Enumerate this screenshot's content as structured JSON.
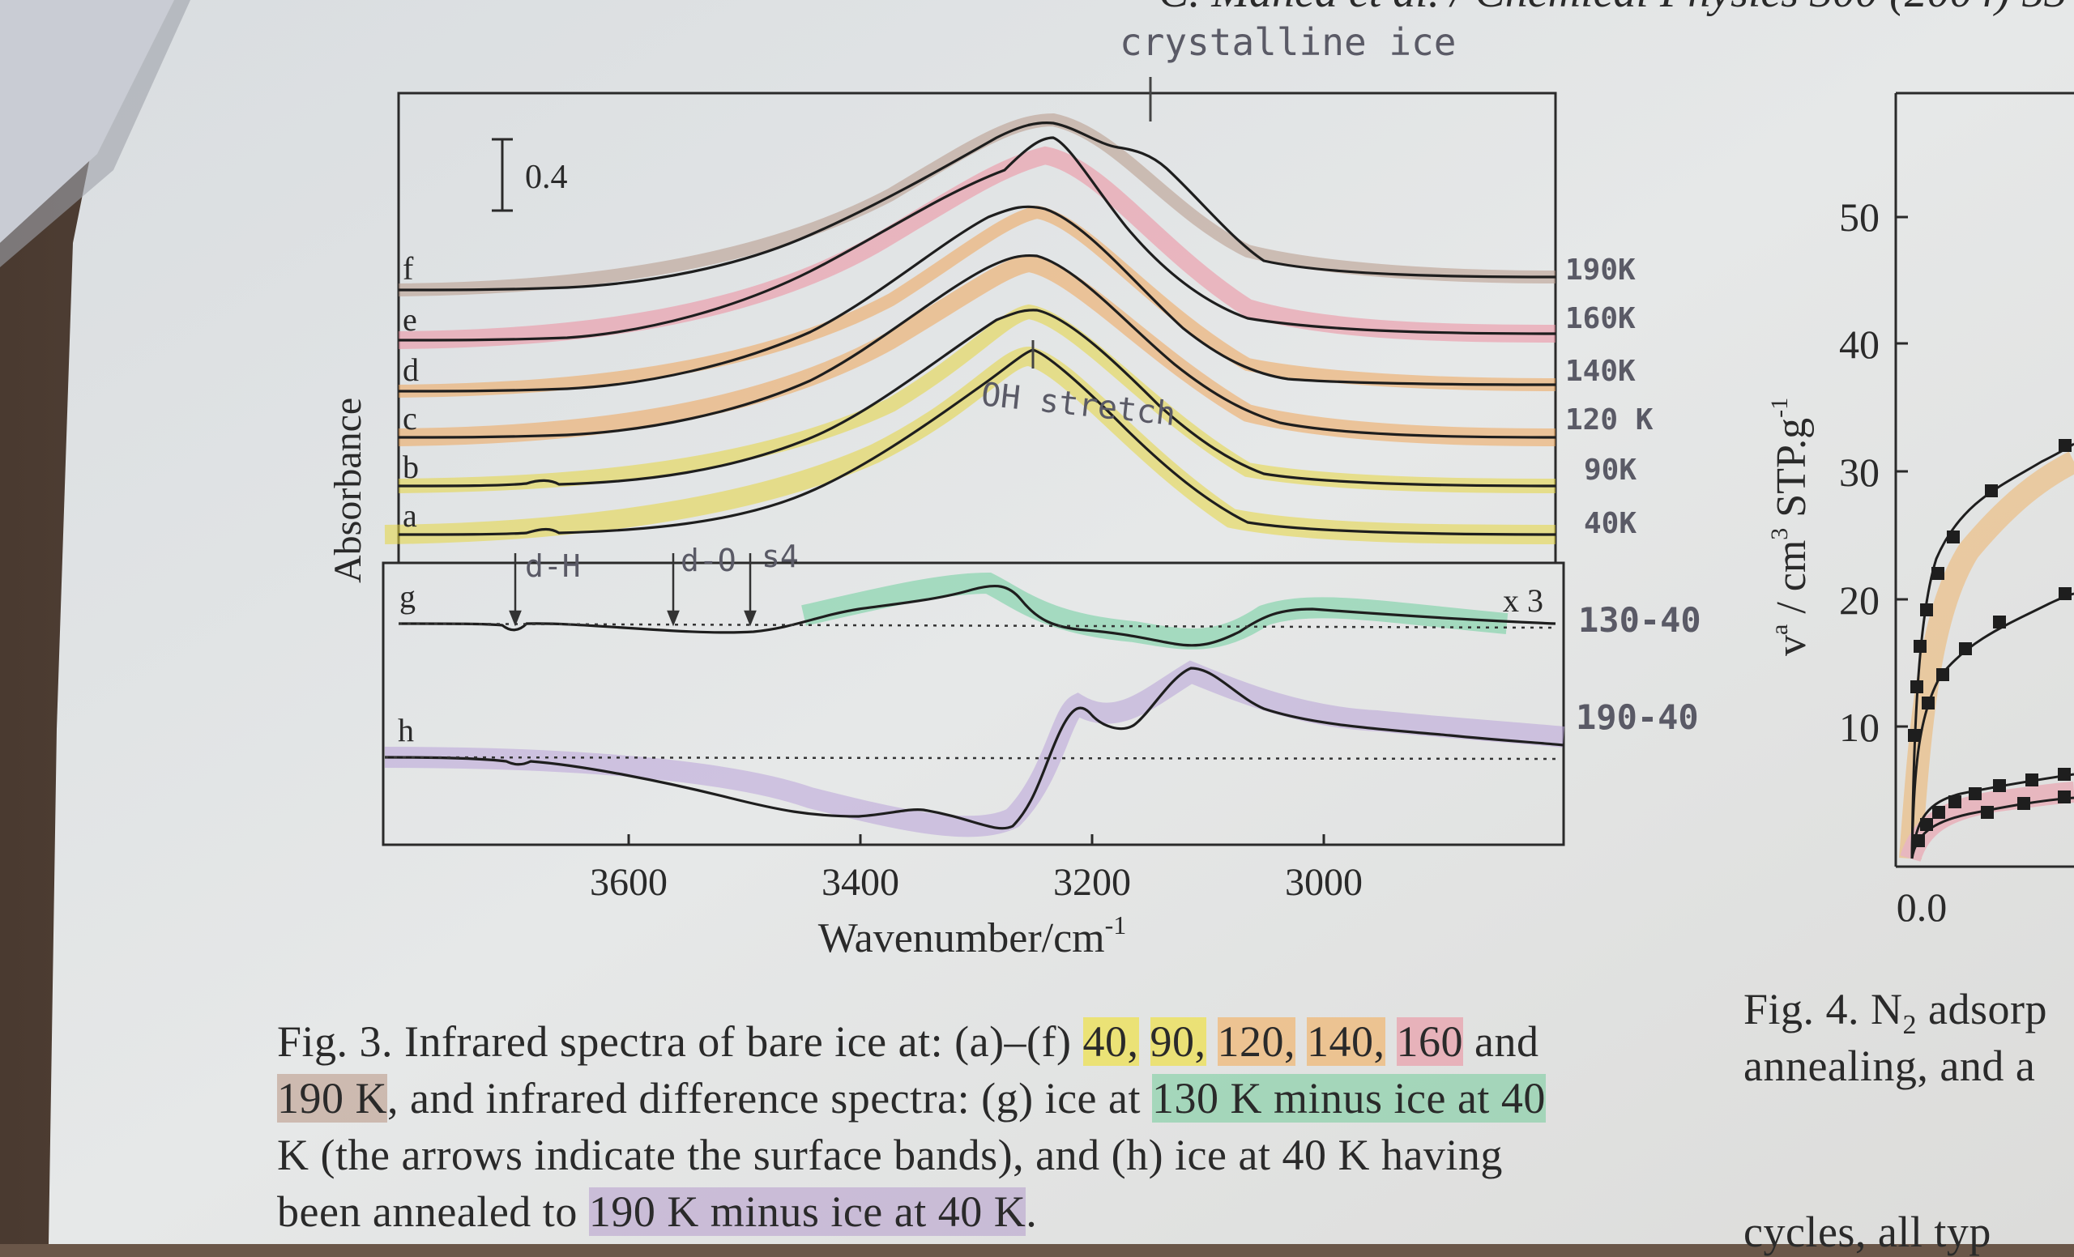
{
  "page_header": "C. Manca et al. / Chemical Physics 300 (2004) 53",
  "left_figure": {
    "chart_data": {
      "type": "line",
      "xlabel": "Wavenumber/cm",
      "xlabel_superscript": "-1",
      "ylabel": "Absorbance",
      "x_ticks": [
        3600,
        3400,
        3200,
        3000
      ],
      "x_range": [
        3810,
        2780
      ],
      "scale_bar_label": "0.4",
      "multiplier_label": "x 3",
      "series": [
        {
          "name": "a",
          "temperature_note": "40K",
          "highlight": "#e8dc44"
        },
        {
          "name": "b",
          "temperature_note": "90K",
          "highlight": "#e8dc44"
        },
        {
          "name": "c",
          "temperature_note": "120 K",
          "highlight": "#f0a65a"
        },
        {
          "name": "d",
          "temperature_note": "140K",
          "highlight": "#f0a65a"
        },
        {
          "name": "e",
          "temperature_note": "160K",
          "highlight": "#ee8fa0"
        },
        {
          "name": "f",
          "temperature_note": "190K",
          "highlight": "#b89a8a"
        },
        {
          "name": "g",
          "temperature_note": "130-40",
          "highlight": "#6fd0a0"
        },
        {
          "name": "h",
          "temperature_note": "190-40",
          "highlight": "#b9a3d8"
        }
      ],
      "arrows": [
        "d-H",
        "d-O",
        "s4"
      ],
      "handwritten": [
        "crystalline ice",
        "OH stretch"
      ]
    }
  },
  "right_figure": {
    "ylabel_main": "v",
    "ylabel_rest": " / cm",
    "ylabel_unit": " STP.g",
    "y_ticks": [
      "50",
      "40",
      "30",
      "20",
      "10"
    ],
    "x_tick": "0.0"
  },
  "caption_left": {
    "line1_pre": "Fig. 3. Infrared spectra of bare ice at: (a)–(f) ",
    "v40": "40,",
    "v90": "90,",
    "v120": "120,",
    "v140": "140,",
    "v160": "160",
    "line1_post": " and",
    "v190": "190 K",
    "line2_post": ", and infrared difference spectra: (g) ice at ",
    "v130": "130 K minus ice at ",
    "v40b": "40",
    "line3": "K (the arrows indicate the surface bands), and (h) ice at 40 K having",
    "line4_pre": "been annealed to ",
    "v190b": "190 K minus ice at 40 K",
    "line4_post": "."
  },
  "caption_right": {
    "line1": "Fig. 4. N",
    "line1_sub": "2",
    "line1_post": " adsorp",
    "line2": "annealing, and a",
    "line3": "cycles, all typ"
  }
}
